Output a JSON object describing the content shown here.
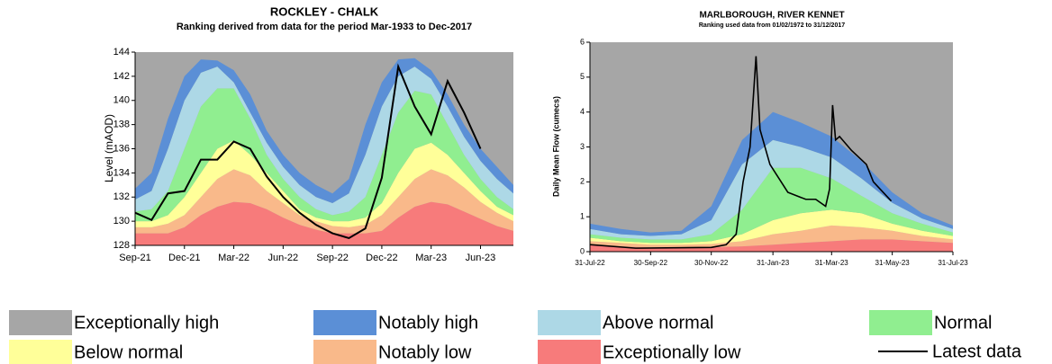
{
  "chart_data": [
    {
      "type": "area",
      "title": "ROCKLEY - CHALK",
      "subtitle": "Ranking derived from data for the period Mar-1933 to Dec-2017",
      "ylabel": "Level (mAOD)",
      "categories": [
        "Sep-21",
        null,
        null,
        "Dec-21",
        null,
        null,
        "Mar-22",
        null,
        null,
        "Jun-22",
        null,
        null,
        "Sep-22",
        null,
        null,
        "Dec-22",
        null,
        null,
        "Mar-23",
        null,
        null,
        "Jun-23",
        null,
        null
      ],
      "ylim": [
        128,
        144
      ],
      "yticks": [
        128,
        130,
        132,
        134,
        136,
        138,
        140,
        142,
        144
      ],
      "background": "#a6a6a6",
      "series": [
        {
          "type": "area",
          "color": "#f77b7b",
          "values": [
            129,
            129,
            129,
            129.5,
            130.5,
            131.2,
            131.6,
            131.5,
            131,
            130.3,
            129.7,
            129.3,
            129,
            129,
            129,
            129.2,
            130.3,
            131.2,
            131.6,
            131.4,
            130.8,
            130.2,
            129.6,
            129.2
          ]
        },
        {
          "type": "area",
          "color": "#f9b98a",
          "values": [
            129.5,
            129.5,
            129.8,
            130.5,
            132,
            133.5,
            134.3,
            133.8,
            132.5,
            131.5,
            130.5,
            130,
            129.6,
            129.5,
            129.7,
            130.5,
            132,
            133.5,
            134.3,
            133.8,
            132.8,
            131.6,
            130.7,
            130
          ]
        },
        {
          "type": "area",
          "color": "#ffff99",
          "values": [
            130,
            130,
            130.5,
            132,
            134,
            136,
            136.7,
            135.5,
            134,
            132.5,
            131,
            130.3,
            130,
            130,
            130.3,
            131.5,
            134,
            136,
            136.5,
            135.5,
            134,
            132.5,
            131.2,
            130.5
          ]
        },
        {
          "type": "area",
          "color": "#90ee90",
          "values": [
            130.8,
            131,
            132.5,
            136,
            139.5,
            141,
            141,
            138.5,
            135.5,
            133.5,
            132,
            131,
            130.5,
            130.8,
            132,
            135.5,
            139,
            140.8,
            140.5,
            138,
            135.5,
            133.5,
            132,
            131
          ]
        },
        {
          "type": "area",
          "color": "#add8e6",
          "values": [
            131.8,
            132.5,
            136,
            140,
            142.3,
            142.8,
            141.5,
            139,
            136.5,
            134.5,
            133,
            132,
            131.5,
            132.3,
            135.5,
            139.5,
            142,
            142.8,
            141.8,
            139.5,
            137,
            135,
            133.5,
            132.3
          ]
        },
        {
          "type": "area",
          "color": "#5b8fd6",
          "values": [
            132.7,
            134,
            138.5,
            142,
            143.4,
            143.3,
            142.5,
            140.5,
            137.5,
            135.5,
            134,
            133,
            132.3,
            133.5,
            138,
            141.5,
            143.4,
            143.5,
            142.5,
            140.5,
            138,
            136,
            134.5,
            133
          ]
        },
        {
          "type": "line",
          "color": "#000000",
          "values": [
            130.7,
            130.1,
            132.3,
            132.5,
            135.1,
            135.1,
            136.6,
            136,
            133.7,
            132,
            130.7,
            129.7,
            129,
            128.6,
            129.4,
            133.6,
            142.8,
            139.5,
            137.2,
            141.6,
            139,
            136,
            null,
            null
          ]
        }
      ]
    },
    {
      "type": "area",
      "title": "MARLBOROUGH, RIVER KENNET",
      "subtitle": "Ranking used data from 01/02/1972 to 31/12/2017",
      "ylabel": "Daily Mean Flow (cumecs)",
      "x": [
        "2022-07-31",
        "2022-08-31",
        "2022-09-30",
        "2022-10-31",
        "2022-11-30",
        "2022-12-31",
        "2023-01-31",
        "2023-02-28",
        "2023-03-31",
        "2023-04-30",
        "2023-05-31",
        "2023-06-30",
        "2023-07-31"
      ],
      "xlim": [
        "2022-07-31",
        "2023-07-31"
      ],
      "xticks": [
        {
          "value": "2022-07-31",
          "label": "31-Jul-22"
        },
        {
          "value": "2022-09-30",
          "label": "30-Sep-22"
        },
        {
          "value": "2022-11-30",
          "label": "30-Nov-22"
        },
        {
          "value": "2023-01-31",
          "label": "31-Jan-23"
        },
        {
          "value": "2023-03-31",
          "label": "31-Mar-23"
        },
        {
          "value": "2023-05-31",
          "label": "31-May-23"
        },
        {
          "value": "2023-07-31",
          "label": "31-Jul-23"
        }
      ],
      "ylim": [
        0,
        6
      ],
      "yticks": [
        0,
        1,
        2,
        3,
        4,
        5,
        6
      ],
      "background": "#a6a6a6",
      "series": [
        {
          "type": "area",
          "color": "#f77b7b",
          "values": [
            0.2,
            0.15,
            0.12,
            0.12,
            0.13,
            0.15,
            0.2,
            0.25,
            0.3,
            0.35,
            0.35,
            0.3,
            0.25
          ]
        },
        {
          "type": "area",
          "color": "#f9b98a",
          "values": [
            0.3,
            0.25,
            0.2,
            0.2,
            0.22,
            0.3,
            0.5,
            0.6,
            0.75,
            0.7,
            0.6,
            0.45,
            0.35
          ]
        },
        {
          "type": "area",
          "color": "#ffff99",
          "values": [
            0.4,
            0.3,
            0.25,
            0.25,
            0.3,
            0.5,
            0.9,
            1.1,
            1.2,
            1.1,
            0.8,
            0.6,
            0.45
          ]
        },
        {
          "type": "area",
          "color": "#90ee90",
          "values": [
            0.5,
            0.4,
            0.35,
            0.35,
            0.5,
            1.2,
            2.4,
            2.4,
            2.1,
            1.6,
            1.1,
            0.8,
            0.55
          ]
        },
        {
          "type": "area",
          "color": "#add8e6",
          "values": [
            0.65,
            0.5,
            0.45,
            0.5,
            0.9,
            2.5,
            3.2,
            3,
            2.7,
            2.1,
            1.4,
            0.95,
            0.65
          ]
        },
        {
          "type": "area",
          "color": "#5b8fd6",
          "values": [
            0.8,
            0.65,
            0.55,
            0.6,
            1.3,
            3.2,
            4,
            3.7,
            3.3,
            2.6,
            1.7,
            1.1,
            0.75
          ]
        },
        {
          "type": "line",
          "color": "#000000",
          "x": [
            "2022-07-31",
            "2022-09-15",
            "2022-11-30",
            "2022-12-15",
            "2022-12-25",
            "2023-01-01",
            "2023-01-08",
            "2023-01-14",
            "2023-01-18",
            "2023-01-28",
            "2023-02-15",
            "2023-03-05",
            "2023-03-15",
            "2023-03-25",
            "2023-03-29",
            "2023-04-01",
            "2023-04-04",
            "2023-04-08",
            "2023-04-20",
            "2023-05-05",
            "2023-05-12",
            "2023-05-30"
          ],
          "values": [
            0.2,
            0.1,
            0.12,
            0.2,
            0.5,
            2,
            3,
            5.6,
            3.5,
            2.5,
            1.7,
            1.5,
            1.5,
            1.3,
            1.8,
            4.2,
            3.2,
            3.3,
            2.9,
            2.5,
            2,
            1.45
          ]
        }
      ]
    }
  ],
  "legend": [
    {
      "name": "Exceptionally high",
      "color": "#a6a6a6"
    },
    {
      "name": "Notably high",
      "color": "#5b8fd6"
    },
    {
      "name": "Above normal",
      "color": "#add8e6"
    },
    {
      "name": "Normal",
      "color": "#90ee90"
    },
    {
      "name": "Below normal",
      "color": "#ffff99"
    },
    {
      "name": "Notably low",
      "color": "#f9b98a"
    },
    {
      "name": "Exceptionally low",
      "color": "#f77b7b"
    },
    {
      "name": "Latest data",
      "color": "#000000",
      "symbol": "line"
    }
  ]
}
